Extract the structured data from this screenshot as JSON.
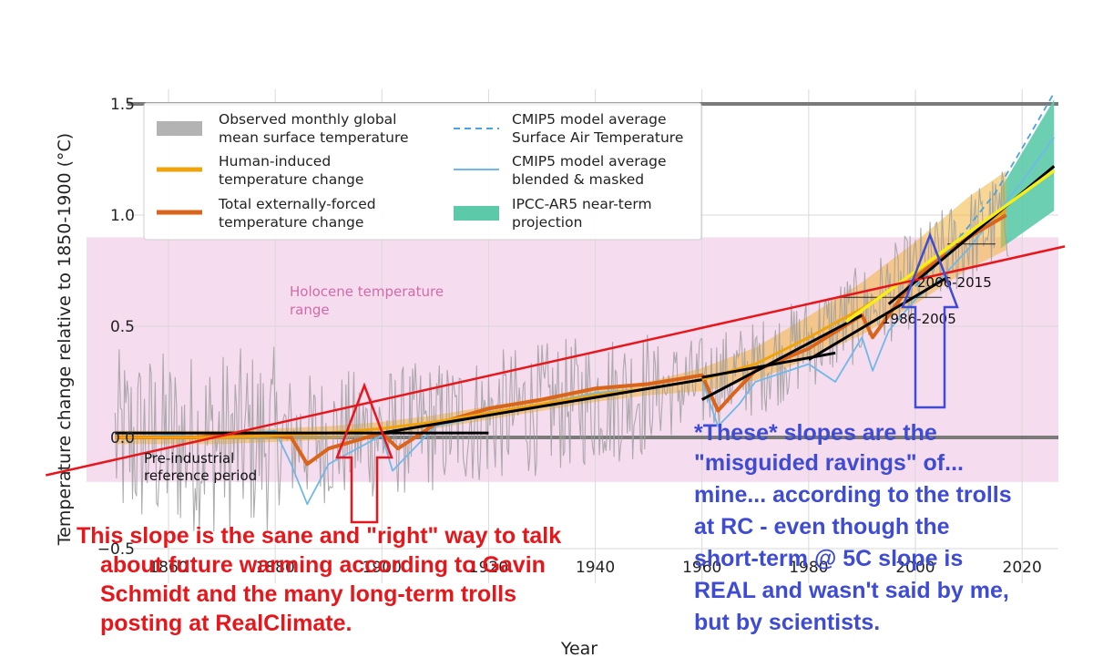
{
  "chart_data": {
    "type": "line",
    "title": "",
    "xlabel": "Year",
    "ylabel": "Temperature change relative to 1850-1900 (°C)",
    "xlim": [
      1850,
      2030
    ],
    "ylim": [
      -0.55,
      1.6
    ],
    "x_ticks": [
      1860,
      1880,
      1900,
      1920,
      1940,
      1960,
      1980,
      2000,
      2020
    ],
    "y_ticks": [
      -0.5,
      0.0,
      0.5,
      1.0,
      1.5
    ],
    "y_tick_labels": [
      "−0.5",
      "0.0",
      "0.5",
      "1.0",
      "1.5"
    ],
    "grid": true,
    "legend_placement": "top-left",
    "legend": [
      {
        "key": "observed",
        "line1": "Observed monthly global",
        "line2": "mean surface temperature",
        "color": "#b3b3b3"
      },
      {
        "key": "human",
        "line1": "Human-induced",
        "line2": "temperature change",
        "color": "#f0a30a"
      },
      {
        "key": "forced",
        "line1": "Total externally-forced",
        "line2": "temperature change",
        "color": "#d9641a"
      },
      {
        "key": "cmip5_sat",
        "line1": "CMIP5 model average",
        "line2": "Surface Air Temperature",
        "color": "#4aa3df"
      },
      {
        "key": "cmip5_blend",
        "line1": "CMIP5 model average",
        "line2": "blended & masked",
        "color": "#6fb9e8"
      },
      {
        "key": "ipcc",
        "line1": "IPCC-AR5 near-term",
        "line2": "projection",
        "color": "#5ccaa8"
      }
    ],
    "holocene_band": {
      "label_line1": "Holocene temperature",
      "label_line2": "range",
      "y_range": [
        -0.2,
        0.9
      ],
      "color": "#f3d6ec"
    },
    "preindustrial": {
      "label_line1": "Pre-industrial",
      "label_line2": "reference period",
      "x_range": [
        1850,
        1900
      ]
    },
    "period_labels": [
      "2006-2015",
      "1986-2005"
    ],
    "series": [
      {
        "name": "Human-induced temperature change",
        "x": [
          1850,
          1870,
          1890,
          1900,
          1910,
          1920,
          1930,
          1940,
          1950,
          1960,
          1970,
          1980,
          1990,
          2000,
          2010,
          2017
        ],
        "values": [
          0.0,
          0.0,
          0.02,
          0.04,
          0.07,
          0.11,
          0.15,
          0.19,
          0.22,
          0.26,
          0.33,
          0.45,
          0.58,
          0.74,
          0.92,
          1.02
        ]
      },
      {
        "name": "Total externally-forced temperature change",
        "x": [
          1850,
          1865,
          1875,
          1883,
          1886,
          1890,
          1900,
          1903,
          1910,
          1920,
          1930,
          1940,
          1950,
          1960,
          1963,
          1966,
          1970,
          1980,
          1990,
          1992,
          1995,
          2000,
          2010,
          2017
        ],
        "values": [
          0.0,
          0.0,
          0.02,
          0.0,
          -0.12,
          -0.05,
          0.02,
          -0.05,
          0.06,
          0.13,
          0.17,
          0.22,
          0.24,
          0.28,
          0.12,
          0.2,
          0.3,
          0.4,
          0.55,
          0.45,
          0.55,
          0.72,
          0.9,
          1.0
        ]
      },
      {
        "name": "CMIP5 model average blended & masked",
        "x": [
          1850,
          1860,
          1870,
          1880,
          1883,
          1886,
          1890,
          1900,
          1902,
          1906,
          1910,
          1920,
          1930,
          1940,
          1950,
          1960,
          1963,
          1967,
          1970,
          1980,
          1985,
          1990,
          1992,
          1995,
          2000,
          2005,
          2010,
          2015,
          2020,
          2026
        ],
        "values": [
          0.0,
          0.01,
          0.0,
          0.03,
          -0.12,
          -0.3,
          -0.12,
          0.01,
          -0.15,
          -0.05,
          0.05,
          0.1,
          0.15,
          0.2,
          0.22,
          0.26,
          0.05,
          0.15,
          0.25,
          0.33,
          0.25,
          0.45,
          0.3,
          0.48,
          0.62,
          0.72,
          0.85,
          1.0,
          1.15,
          1.35
        ]
      },
      {
        "name": "CMIP5 model average Surface Air Temperature",
        "x": [
          2000,
          2005,
          2010,
          2015,
          2020,
          2026
        ],
        "values": [
          0.68,
          0.8,
          0.95,
          1.1,
          1.3,
          1.55
        ]
      }
    ],
    "ipcc_projection": {
      "x": [
        2016,
        2026
      ],
      "lower": [
        0.85,
        1.02
      ],
      "upper": [
        1.12,
        1.52
      ]
    },
    "annotation_lines": {
      "long_term_slope": {
        "x": [
          1850,
          2030
        ],
        "values": [
          -0.1,
          0.87
        ],
        "color": "#e8161b"
      },
      "short_term_slopes": [
        {
          "x": [
            1850,
            1920
          ],
          "values": [
            0.02,
            0.02
          ]
        },
        {
          "x": [
            1900,
            1960
          ],
          "values": [
            0.02,
            0.26
          ]
        },
        {
          "x": [
            1960,
            1985
          ],
          "values": [
            0.27,
            0.38
          ]
        },
        {
          "x": [
            1960,
            1990
          ],
          "values": [
            0.17,
            0.55
          ]
        },
        {
          "x": [
            1980,
            2006
          ],
          "values": [
            0.35,
            0.72
          ]
        },
        {
          "x": [
            1995,
            2026
          ],
          "values": [
            0.6,
            1.22
          ]
        }
      ],
      "yellow_slope": {
        "x": [
          1987,
          2026
        ],
        "values": [
          0.52,
          1.2
        ]
      }
    }
  },
  "annotations": {
    "red_text": [
      "This slope is the sane and \"right\" way to talk",
      "about future warming according to Gavin",
      "Schmidt and the many long-term trolls",
      "posting at RealClimate."
    ],
    "blue_text": [
      "*These* slopes are the",
      "\"misguided ravings\" of...",
      "mine... according to the trolls",
      "at RC - even though the",
      "short-term @ 5C slope is",
      "REAL and wasn't said by me,",
      "but by scientists."
    ]
  }
}
